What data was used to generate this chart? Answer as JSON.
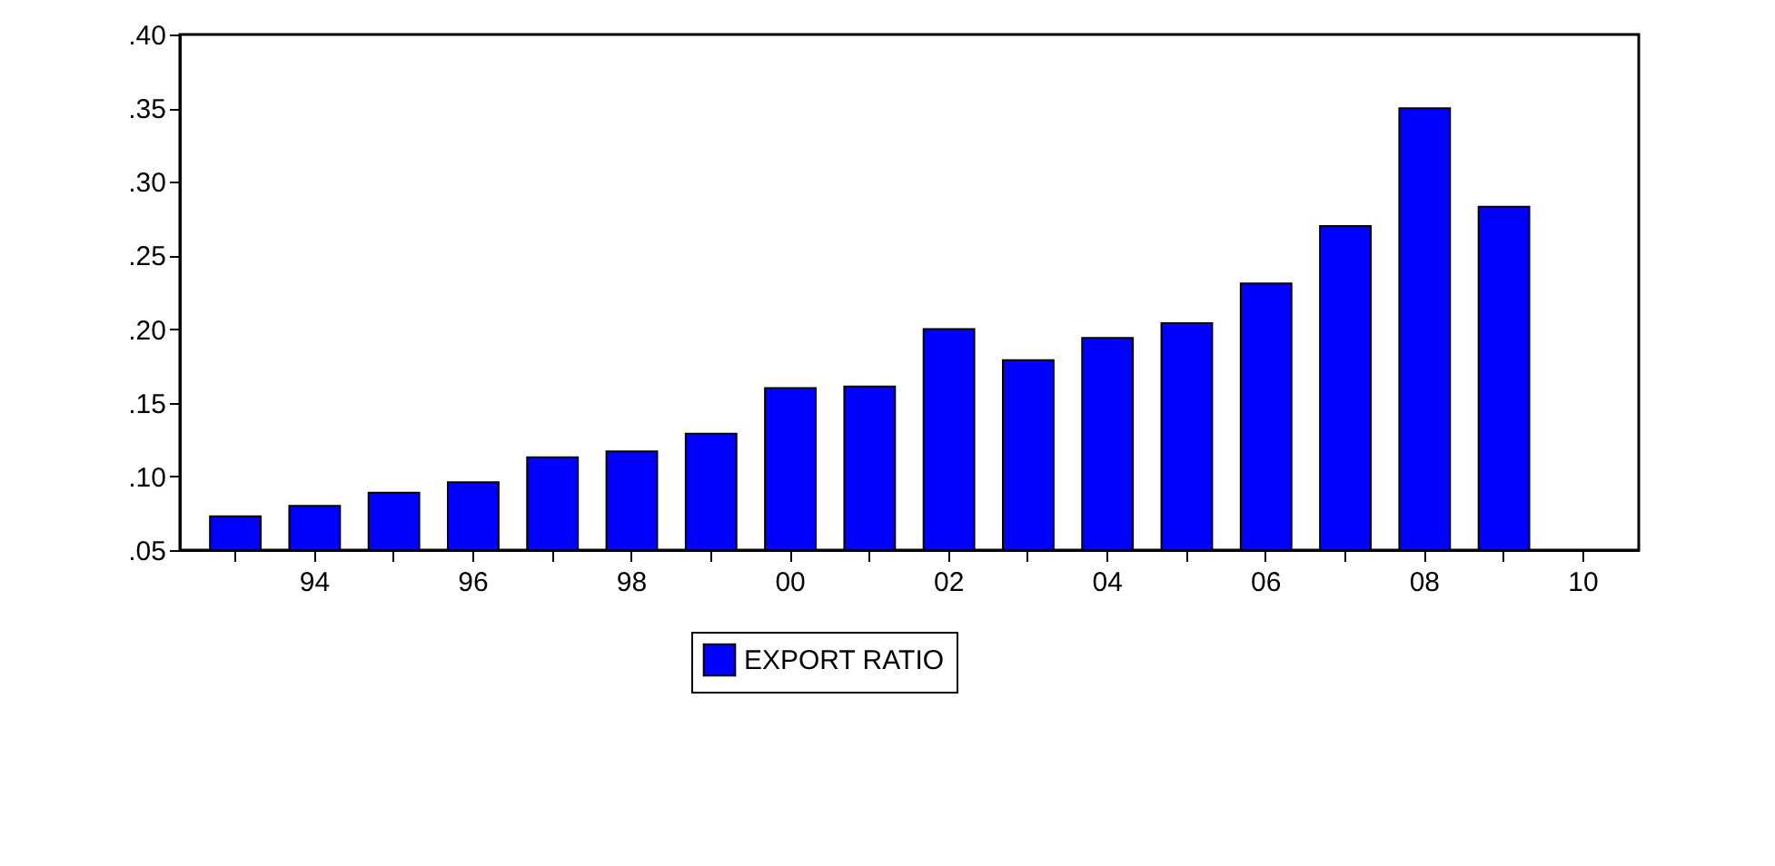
{
  "chart_data": {
    "type": "bar",
    "categories": [
      null,
      "94",
      null,
      "96",
      null,
      "98",
      null,
      "00",
      null,
      "02",
      null,
      "04",
      null,
      "06",
      null,
      "08",
      null,
      "10"
    ],
    "series": [
      {
        "name": "EXPORT RATIO",
        "color": "#0000ff",
        "values": [
          0.073,
          0.08,
          0.089,
          0.096,
          0.113,
          0.117,
          0.129,
          0.16,
          0.161,
          0.2,
          0.179,
          0.194,
          0.204,
          0.231,
          0.27,
          0.35,
          0.283,
          null
        ]
      }
    ],
    "ylim": [
      0.05,
      0.4
    ],
    "yticks": [
      {
        "value": 0.05,
        "label": ".05"
      },
      {
        "value": 0.1,
        "label": ".10"
      },
      {
        "value": 0.15,
        "label": ".15"
      },
      {
        "value": 0.2,
        "label": ".20"
      },
      {
        "value": 0.25,
        "label": ".25"
      },
      {
        "value": 0.3,
        "label": ".30"
      },
      {
        "value": 0.35,
        "label": ".35"
      },
      {
        "value": 0.4,
        "label": ".40"
      }
    ],
    "grid": false,
    "legend": "bottom"
  }
}
